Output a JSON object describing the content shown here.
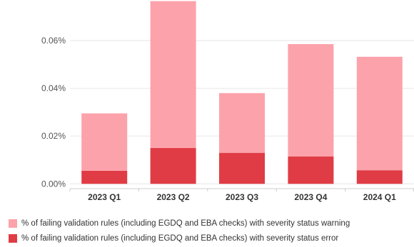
{
  "chart_data": {
    "type": "bar",
    "stacked": true,
    "categories": [
      "2023 Q1",
      "2023 Q2",
      "2023 Q3",
      "2023 Q4",
      "2024 Q1"
    ],
    "series": [
      {
        "name": "% of failing validation rules (including EGDQ and EBA checks) with severity status error",
        "color": "#e03c45",
        "values": [
          0.0055,
          0.015,
          0.013,
          0.0115,
          0.0057
        ]
      },
      {
        "name": "% of failing validation rules (including EGDQ and EBA checks) with severity status warning",
        "color": "#fca2ab",
        "values": [
          0.024,
          0.0615,
          0.025,
          0.047,
          0.0475
        ]
      }
    ],
    "yticks": [
      "0.00%",
      "0.02%",
      "0.04%",
      "0.06%"
    ],
    "ytick_values": [
      0.0,
      0.02,
      0.04,
      0.06
    ],
    "ylim": [
      -0.002,
      0.074
    ],
    "grid": true,
    "legend_position": "bottom"
  },
  "legend": [
    {
      "label": "% of failing validation rules (including EGDQ and EBA checks) with severity status warning",
      "color": "#fca2ab"
    },
    {
      "label": "% of failing validation rules (including EGDQ and EBA checks) with severity status error",
      "color": "#e03c45"
    }
  ]
}
